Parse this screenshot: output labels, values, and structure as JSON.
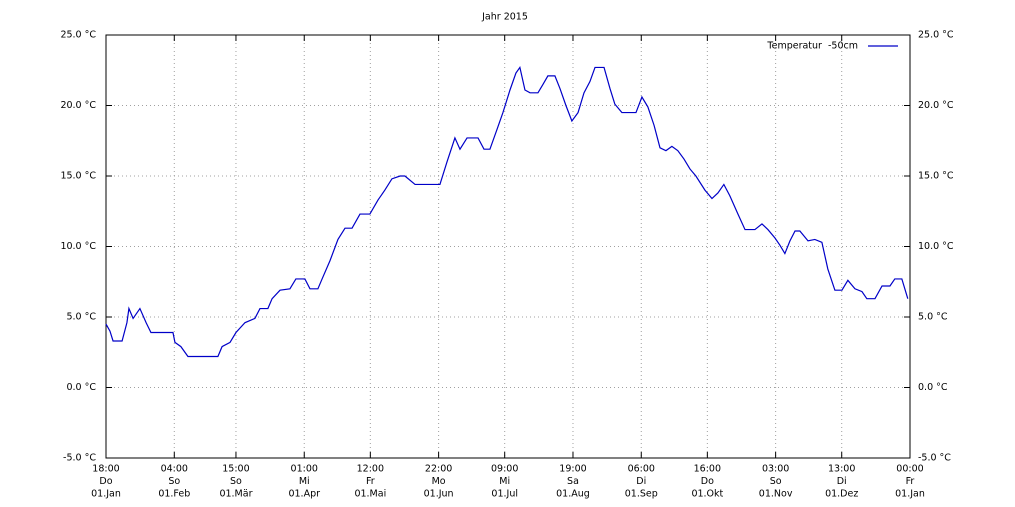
{
  "chart_data": {
    "type": "line",
    "title": "Jahr 2015",
    "x": [
      0,
      1.8,
      3.2,
      5.0,
      7.3,
      9.5,
      10.4,
      12.3,
      15.4,
      18.2,
      20.4,
      26.8,
      30.4,
      31.3,
      34.0,
      37.2,
      42.7,
      50.8,
      52.7,
      56.3,
      59.0,
      63.1,
      67.6,
      69.9,
      73.5,
      75.4,
      79.0,
      83.5,
      86.2,
      90.3,
      92.6,
      96.2,
      98.1,
      101.7,
      105.3,
      108.5,
      111.7,
      115.3,
      117.6,
      119.8,
      123.5,
      126.6,
      129.8,
      133.5,
      135.7,
      140.3,
      147.1,
      151.6,
      154.8,
      158.4,
      160.7,
      163.9,
      168.9,
      171.6,
      174.3,
      177.5,
      180.2,
      183.4,
      186.1,
      187.9,
      190.2,
      192.5,
      196.1,
      198.4,
      200.6,
      203.8,
      206.1,
      208.8,
      211.5,
      214.3,
      217.0,
      219.7,
      222.0,
      226.1,
      228.8,
      231.0,
      234.2,
      237.9,
      240.6,
      243.3,
      246.0,
      248.8,
      251.5,
      254.2,
      256.9,
      259.6,
      262.4,
      265.1,
      267.8,
      271.9,
      275.1,
      277.8,
      280.5,
      283.2,
      286.9,
      290.1,
      294.6,
      297.8,
      300.5,
      303.7,
      305.9,
      308.2,
      310.5,
      312.8,
      315.0,
      318.7,
      321.8,
      325.0,
      327.7,
      330.9,
      334.1,
      336.8,
      340.0,
      343.2,
      345.4,
      349.1,
      352.3,
      355.9,
      358.1,
      361.3,
      364.0
    ],
    "series": [
      {
        "name": "Temperatur  -50cm",
        "color": "#0000c8",
        "values": [
          4.5,
          4.0,
          3.3,
          3.3,
          3.3,
          4.6,
          5.6,
          4.9,
          5.6,
          4.6,
          3.9,
          3.9,
          3.9,
          3.2,
          2.9,
          2.2,
          2.2,
          2.2,
          2.9,
          3.2,
          3.9,
          4.6,
          4.9,
          5.6,
          5.6,
          6.3,
          6.9,
          7.0,
          7.7,
          7.7,
          7.0,
          7.0,
          7.7,
          9.0,
          10.5,
          11.3,
          11.3,
          12.3,
          12.3,
          12.3,
          13.3,
          14.0,
          14.8,
          15.0,
          15.0,
          14.4,
          14.4,
          14.4,
          16.0,
          17.7,
          16.9,
          17.7,
          17.7,
          16.9,
          16.9,
          18.3,
          19.5,
          21.1,
          22.3,
          22.7,
          21.1,
          20.9,
          20.9,
          21.5,
          22.1,
          22.1,
          21.2,
          20.0,
          18.9,
          19.5,
          20.9,
          21.7,
          22.7,
          22.7,
          21.2,
          20.1,
          19.5,
          19.5,
          19.5,
          20.6,
          19.9,
          18.6,
          17.0,
          16.8,
          17.1,
          16.8,
          16.2,
          15.5,
          15.0,
          14.0,
          13.4,
          13.8,
          14.4,
          13.6,
          12.3,
          11.2,
          11.2,
          11.6,
          11.2,
          10.6,
          10.1,
          9.5,
          10.4,
          11.1,
          11.1,
          10.4,
          10.5,
          10.3,
          8.4,
          6.9,
          6.9,
          7.6,
          7.0,
          6.8,
          6.3,
          6.3,
          7.2,
          7.2,
          7.7,
          7.7,
          6.3
        ]
      }
    ],
    "xlim": [
      0,
      365
    ],
    "xticks": [
      {
        "value": 0,
        "label": [
          "18:00",
          "Do",
          "01.Jan"
        ]
      },
      {
        "value": 31,
        "label": [
          "04:00",
          "So",
          "01.Feb"
        ]
      },
      {
        "value": 59,
        "label": [
          "15:00",
          "So",
          "01.Mär"
        ]
      },
      {
        "value": 90,
        "label": [
          "01:00",
          "Mi",
          "01.Apr"
        ]
      },
      {
        "value": 120,
        "label": [
          "12:00",
          "Fr",
          "01.Mai"
        ]
      },
      {
        "value": 151,
        "label": [
          "22:00",
          "Mo",
          "01.Jun"
        ]
      },
      {
        "value": 181,
        "label": [
          "09:00",
          "Mi",
          "01.Jul"
        ]
      },
      {
        "value": 212,
        "label": [
          "19:00",
          "Sa",
          "01.Aug"
        ]
      },
      {
        "value": 243,
        "label": [
          "06:00",
          "Di",
          "01.Sep"
        ]
      },
      {
        "value": 273,
        "label": [
          "16:00",
          "Do",
          "01.Okt"
        ]
      },
      {
        "value": 304,
        "label": [
          "03:00",
          "So",
          "01.Nov"
        ]
      },
      {
        "value": 334,
        "label": [
          "13:00",
          "Di",
          "01.Dez"
        ]
      },
      {
        "value": 365,
        "label": [
          "00:00",
          "Fr",
          "01.Jan"
        ]
      }
    ],
    "ylim": [
      -5,
      25
    ],
    "yticks": [
      {
        "value": -5,
        "label": "-5.0 °C"
      },
      {
        "value": 0,
        "label": "0.0 °C"
      },
      {
        "value": 5,
        "label": "5.0 °C"
      },
      {
        "value": 10,
        "label": "10.0 °C"
      },
      {
        "value": 15,
        "label": "15.0 °C"
      },
      {
        "value": 20,
        "label": "20.0 °C"
      },
      {
        "value": 25,
        "label": "25.0 °C"
      }
    ],
    "grid": true,
    "legend": "top-right"
  }
}
